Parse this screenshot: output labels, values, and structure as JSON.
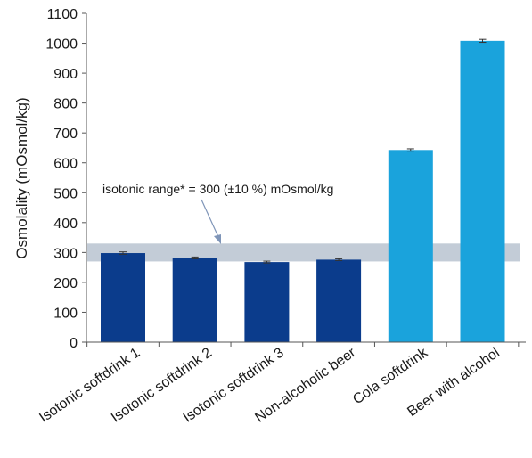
{
  "chart_data": {
    "type": "bar",
    "title": "",
    "xlabel": "",
    "ylabel": "Osmolality (mOsmol/kg)",
    "ylim": [
      0,
      1100
    ],
    "yticks": [
      0,
      100,
      200,
      300,
      400,
      500,
      600,
      700,
      800,
      900,
      1000,
      1100
    ],
    "grid": false,
    "legend": "none",
    "categories": [
      "Isotonic softdrink 1",
      "Isotonic softdrink 2",
      "Isotonic softdrink 3",
      "Non-alcoholic beer",
      "Cola softdrink",
      "Beer with alcohol"
    ],
    "values": [
      298,
      282,
      268,
      276,
      643,
      1008
    ],
    "errors": [
      4,
      3,
      3,
      3,
      4,
      5
    ],
    "bar_colors": [
      "#0b3c8c",
      "#0b3c8c",
      "#0b3c8c",
      "#0b3c8c",
      "#1aa3dc",
      "#1aa3dc"
    ],
    "band": {
      "from": 270,
      "to": 330,
      "color": "#c3ccd7",
      "label": "isotonic range* = 300 (±10 %) mOsmol/kg",
      "arrow_color": "#7f95b8"
    }
  }
}
